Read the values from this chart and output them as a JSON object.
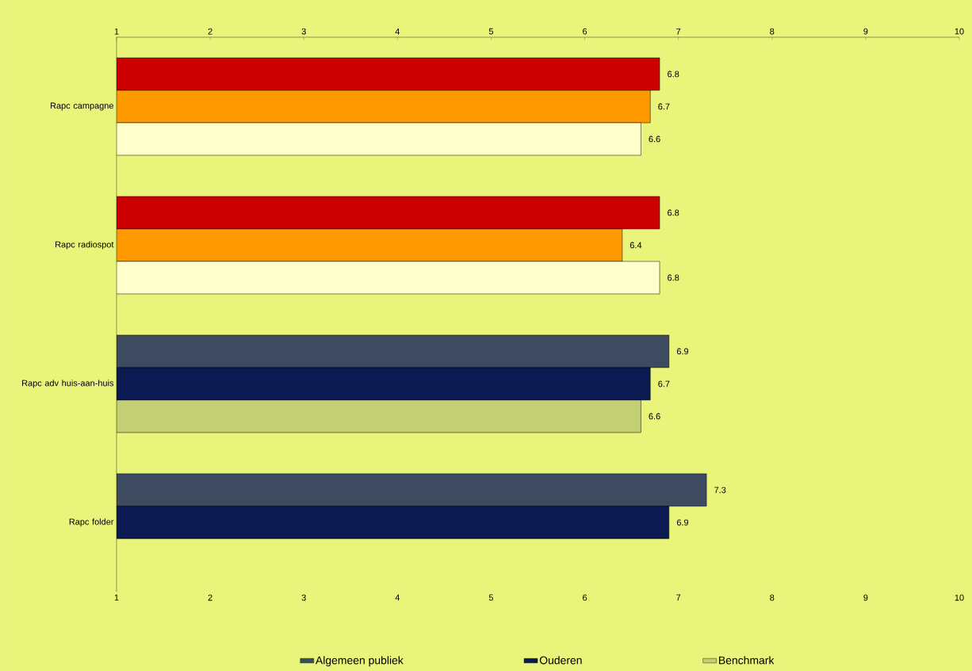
{
  "chart_data": {
    "type": "bar",
    "orientation": "horizontal",
    "categories": [
      "Rapc campagne",
      "Rapc radiospot",
      "Rapc adv huis-aan-huis",
      "Rapc folder"
    ],
    "series": [
      {
        "name": "Algemeen publiek",
        "color": "#3d4a60",
        "colors": [
          "#cc0000",
          "#cc0000",
          "#3d4a60",
          "#3d4a60"
        ],
        "values": [
          6.8,
          6.8,
          6.9,
          7.3
        ]
      },
      {
        "name": "Ouderen",
        "color": "#0c1a52",
        "colors": [
          "#ff9900",
          "#ff9900",
          "#0c1a52",
          "#0c1a52"
        ],
        "values": [
          6.7,
          6.4,
          6.7,
          6.9
        ]
      },
      {
        "name": "Benchmark",
        "color": "#c2cf75",
        "colors": [
          "#ffffcc",
          "#ffffcc",
          "#c2cf75",
          null
        ],
        "values": [
          6.6,
          6.8,
          6.6,
          null
        ]
      }
    ],
    "xlim": [
      1,
      10
    ],
    "xticks": [
      1,
      2,
      3,
      4,
      5,
      6,
      7,
      8,
      9,
      10
    ],
    "x2lim": [
      1,
      10
    ],
    "x2ticks": [
      1,
      2,
      3,
      4,
      5,
      6,
      7,
      8,
      9,
      10
    ],
    "data_labels": true,
    "legend": "bottom"
  }
}
